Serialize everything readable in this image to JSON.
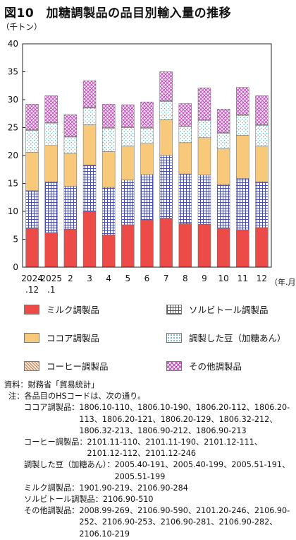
{
  "title": "図10　加糖調製品の品目別輸入量の推移",
  "colors": {
    "milk": "#ec4b47",
    "sorbitol": "#5a5fc0",
    "cocoa": "#f8c97a",
    "beans": "#6cc3c8",
    "coffee": "#d4956a",
    "other": "#c65cc3"
  },
  "chart_data": {
    "type": "bar",
    "stacked": true,
    "ylabel": "（千トン）",
    "xlabel": "（年.月）",
    "ylim": [
      0,
      40
    ],
    "yticks": [
      "0",
      "5",
      "10",
      "15",
      "20",
      "25",
      "30",
      "35",
      "40"
    ],
    "grid": false,
    "categories": [
      {
        "top": "2024",
        "bottom": ".12"
      },
      {
        "top": "2025",
        "bottom": ".1"
      },
      {
        "top": "2",
        "bottom": ""
      },
      {
        "top": "3",
        "bottom": ""
      },
      {
        "top": "4",
        "bottom": ""
      },
      {
        "top": "5",
        "bottom": ""
      },
      {
        "top": "6",
        "bottom": ""
      },
      {
        "top": "7",
        "bottom": ""
      },
      {
        "top": "8",
        "bottom": ""
      },
      {
        "top": "9",
        "bottom": ""
      },
      {
        "top": "10",
        "bottom": ""
      },
      {
        "top": "11",
        "bottom": ""
      },
      {
        "top": "12",
        "bottom": ""
      }
    ],
    "series": [
      {
        "name": "ミルク調製品",
        "key": "milk",
        "values": [
          7.0,
          6.2,
          6.8,
          10.0,
          5.8,
          7.6,
          8.5,
          8.8,
          7.8,
          7.7,
          7.0,
          6.7,
          7.1
        ]
      },
      {
        "name": "ソルビトール調製品",
        "key": "sorbitol",
        "values": [
          6.7,
          9.1,
          7.7,
          8.3,
          8.5,
          8.0,
          8.1,
          11.2,
          8.9,
          8.8,
          7.8,
          9.2,
          8.2
        ]
      },
      {
        "name": "ココア調製品",
        "key": "cocoa",
        "values": [
          6.9,
          6.5,
          5.9,
          7.2,
          6.4,
          6.1,
          5.5,
          6.4,
          5.6,
          6.7,
          6.4,
          7.7,
          6.4
        ]
      },
      {
        "name": "調製した豆（加糖あん）",
        "key": "beans",
        "values": [
          3.9,
          4.0,
          2.9,
          3.0,
          4.2,
          3.3,
          2.8,
          3.3,
          2.9,
          3.1,
          2.8,
          3.6,
          3.7
        ]
      },
      {
        "name": "コーヒー調製品",
        "key": "coffee",
        "values": [
          0.1,
          0.1,
          0.1,
          0.1,
          0.1,
          0.1,
          0.1,
          0.1,
          0.1,
          0.1,
          0.1,
          0.1,
          0.1
        ]
      },
      {
        "name": "その他調製品",
        "key": "other",
        "values": [
          4.6,
          4.8,
          3.9,
          4.8,
          4.2,
          4.0,
          4.6,
          5.2,
          4.0,
          5.7,
          4.2,
          4.9,
          5.2
        ]
      }
    ]
  },
  "legend": [
    {
      "label": "ミルク調製品",
      "key": "milk"
    },
    {
      "label": "ソルビトール調製品",
      "key": "sorbitol"
    },
    {
      "label": "ココア調製品",
      "key": "cocoa"
    },
    {
      "label": "調製した豆（加糖あん）",
      "key": "beans"
    },
    {
      "label": "コーヒー調製品",
      "key": "coffee"
    },
    {
      "label": "その他調製品",
      "key": "other"
    }
  ],
  "notes": {
    "source": "資料：財務省「貿易統計」",
    "note_head": "注：各品目のHSコードは、次の通り。",
    "items": [
      {
        "label": "ココア調製品：",
        "codes": "1806.10-110、1806.10-190、1806.20-112、1806.20-113、1806.20-121、1806.20-129、1806.32-212、1806.32-213、1806.90-212、1806.90-213"
      },
      {
        "label": "コーヒー調製品：",
        "codes": "2101.11-110、2101.11-190、2101.12-111、2101.12-112、2101.12-246"
      },
      {
        "label": "調製した豆（加糖あん）：",
        "codes": "2005.40-191、2005.40-199、2005.51-191、2005.51-199"
      },
      {
        "label": "ミルク調製品：",
        "codes": "1901.90-219、2106.90-284"
      },
      {
        "label": "ソルビトール調製品：",
        "codes": "2106.90-510"
      },
      {
        "label": "その他調製品：",
        "codes": "2008.99-269、2106.90-590、2101.20-246、2106.90-252、2106.90-253、2106.90-281、2106.90-282、2106.10-219"
      }
    ]
  }
}
